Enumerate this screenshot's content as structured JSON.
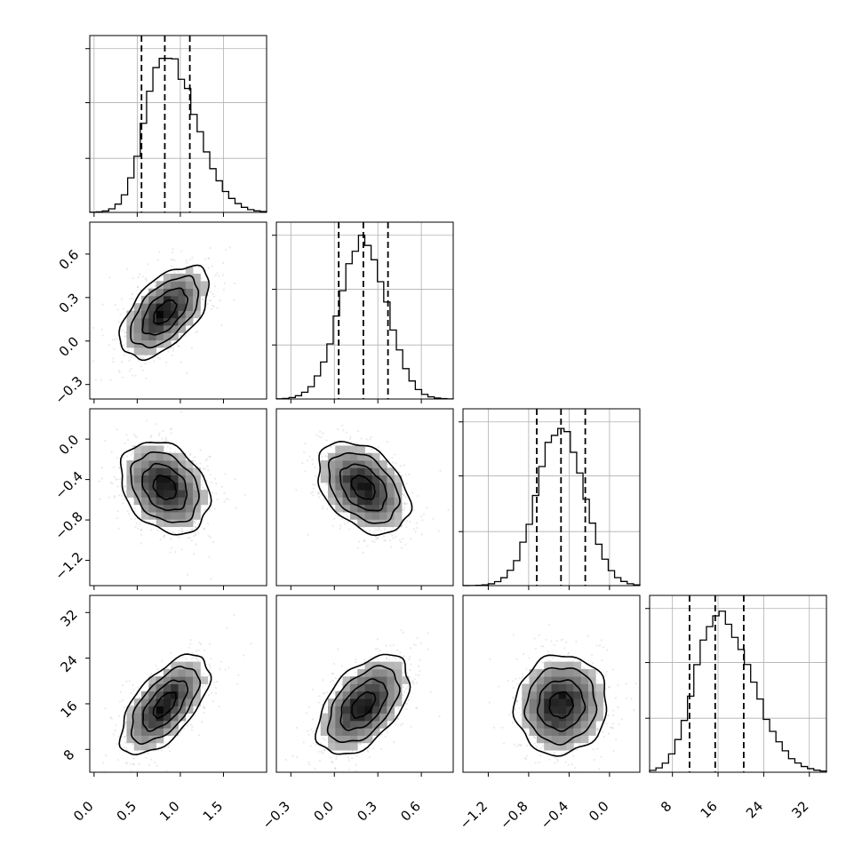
{
  "chart_data": {
    "type": "corner",
    "parameters": [
      {
        "range": [
          -0.05,
          2.0
        ],
        "mean": 0.82,
        "sd": 0.26,
        "skew": 0.35,
        "q": [
          0.55,
          0.82,
          1.11
        ],
        "ticks": [
          {
            "v": 0.0,
            "label": "0.0"
          },
          {
            "v": 0.5,
            "label": "0.5"
          },
          {
            "v": 1.0,
            "label": "1.0"
          },
          {
            "v": 1.5,
            "label": "1.5"
          }
        ]
      },
      {
        "range": [
          -0.4,
          0.82
        ],
        "mean": 0.2,
        "sd": 0.16,
        "skew": 0.0,
        "q": [
          0.03,
          0.2,
          0.37
        ],
        "ticks": [
          {
            "v": -0.3,
            "label": "−0.3"
          },
          {
            "v": 0.0,
            "label": "0.0"
          },
          {
            "v": 0.3,
            "label": "0.3"
          },
          {
            "v": 0.6,
            "label": "0.6"
          }
        ]
      },
      {
        "range": [
          -1.45,
          0.3
        ],
        "mean": -0.48,
        "sd": 0.23,
        "skew": 0.0,
        "q": [
          -0.72,
          -0.48,
          -0.24
        ],
        "ticks": [
          {
            "v": -1.2,
            "label": "−1.2"
          },
          {
            "v": -0.8,
            "label": "−0.8"
          },
          {
            "v": -0.4,
            "label": "−0.4"
          },
          {
            "v": 0.0,
            "label": "0.0"
          }
        ]
      },
      {
        "range": [
          4.0,
          35.0
        ],
        "mean": 15.8,
        "sd": 4.4,
        "skew": 0.35,
        "q": [
          11.0,
          15.5,
          20.5
        ],
        "ticks": [
          {
            "v": 8,
            "label": "8"
          },
          {
            "v": 16,
            "label": "16"
          },
          {
            "v": 24,
            "label": "24"
          },
          {
            "v": 32,
            "label": "32"
          }
        ]
      }
    ],
    "correlations": {
      "1-0": 0.55,
      "2-0": -0.28,
      "2-1": -0.38,
      "3-0": 0.62,
      "3-1": 0.5,
      "3-2": 0.05
    },
    "diagonal_ylim": [
      0,
      1.08
    ],
    "contour_levels": [
      0.12,
      0.39,
      0.68,
      0.86
    ],
    "title": "",
    "grid": true
  }
}
